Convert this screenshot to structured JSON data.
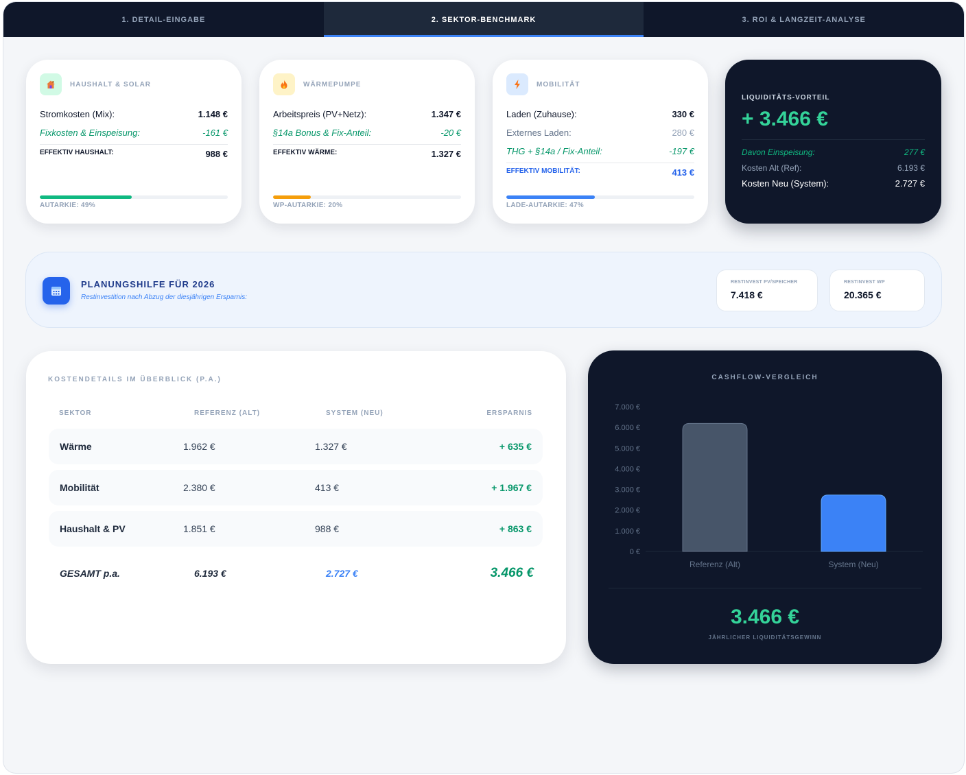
{
  "tabs": [
    {
      "label": "1. DETAIL-EINGABE"
    },
    {
      "label": "2. SEKTOR-BENCHMARK"
    },
    {
      "label": "3. ROI & LANGZEIT-ANALYSE"
    }
  ],
  "haushalt": {
    "title": "HAUSHALT & SOLAR",
    "icon": "house-icon",
    "rows": [
      {
        "label": "Stromkosten (Mix):",
        "value": "1.148 €"
      },
      {
        "label": "Fixkosten & Einspeisung:",
        "value": "-161 €"
      }
    ],
    "eff_label": "EFFEKTIV HAUSHALT:",
    "eff_value": "988 €",
    "autarky_label": "AUTARKIE: 49%",
    "autarky_pct": 49,
    "color": "#10b981"
  },
  "waerme": {
    "title": "WÄRMEPUMPE",
    "icon": "flame-icon",
    "rows": [
      {
        "label": "Arbeitspreis (PV+Netz):",
        "value": "1.347 €"
      },
      {
        "label": "§14a Bonus & Fix-Anteil:",
        "value": "-20 €"
      }
    ],
    "eff_label": "EFFEKTIV WÄRME:",
    "eff_value": "1.327 €",
    "autarky_label": "WP-AUTARKIE: 20%",
    "autarky_pct": 20,
    "color": "#f59e0b"
  },
  "mobil": {
    "title": "MOBILITÄT",
    "icon": "lightning-icon",
    "rows": [
      {
        "label": "Laden (Zuhause):",
        "value": "330 €"
      },
      {
        "label": "Externes Laden:",
        "value": "280 €"
      },
      {
        "label": "THG + §14a / Fix-Anteil:",
        "value": "-197 €"
      }
    ],
    "eff_label": "EFFEKTIV MOBILITÄT:",
    "eff_value": "413 €",
    "autarky_label": "LADE-AUTARKIE: 47%",
    "autarky_pct": 47,
    "color": "#3b82f6"
  },
  "liquidity": {
    "title": "LIQUIDITÄTS-VORTEIL",
    "big": "+ 3.466 €",
    "rows": [
      {
        "label": "Davon Einspeisung:",
        "value": "277 €"
      },
      {
        "label": "Kosten Alt (Ref):",
        "value": "6.193 €"
      },
      {
        "label": "Kosten Neu (System):",
        "value": "2.727 €"
      }
    ]
  },
  "planning": {
    "title": "PLANUNGSHILFE FÜR 2026",
    "subtitle": "Restinvestition nach Abzug der diesjährigen Ersparnis:",
    "boxes": [
      {
        "label": "RESTINVEST PV/SPEICHER",
        "value": "7.418 €"
      },
      {
        "label": "RESTINVEST WP",
        "value": "20.365 €"
      }
    ]
  },
  "costs": {
    "title": "KOSTENDETAILS IM ÜBERBLICK (P.A.)",
    "headers": [
      "SEKTOR",
      "REFERENZ (ALT)",
      "SYSTEM (NEU)",
      "ERSPARNIS"
    ],
    "rows": [
      {
        "sector": "Wärme",
        "ref": "1.962 €",
        "sys": "1.327 €",
        "save": "+ 635 €"
      },
      {
        "sector": "Mobilität",
        "ref": "2.380 €",
        "sys": "413 €",
        "save": "+ 1.967 €"
      },
      {
        "sector": "Haushalt & PV",
        "ref": "1.851 €",
        "sys": "988 €",
        "save": "+ 863 €"
      }
    ],
    "total": {
      "sector": "GESAMT p.a.",
      "ref": "6.193 €",
      "sys": "2.727 €",
      "save": "3.466 €"
    }
  },
  "cashflow": {
    "title": "CASHFLOW-VERGLEICH",
    "big": "3.466 €",
    "subtitle": "JÄHRLICHER LIQUIDITÄTSGEWINN"
  },
  "chart_data": {
    "type": "bar",
    "title": "CASHFLOW-VERGLEICH",
    "categories": [
      "Referenz (Alt)",
      "System (Neu)"
    ],
    "values": [
      6193,
      2727
    ],
    "colors": [
      "#475569",
      "#3b82f6"
    ],
    "yticks": [
      "0 €",
      "1.000 €",
      "2.000 €",
      "3.000 €",
      "4.000 €",
      "5.000 €",
      "6.000 €",
      "7.000 €"
    ],
    "ylim": [
      0,
      7000
    ]
  }
}
